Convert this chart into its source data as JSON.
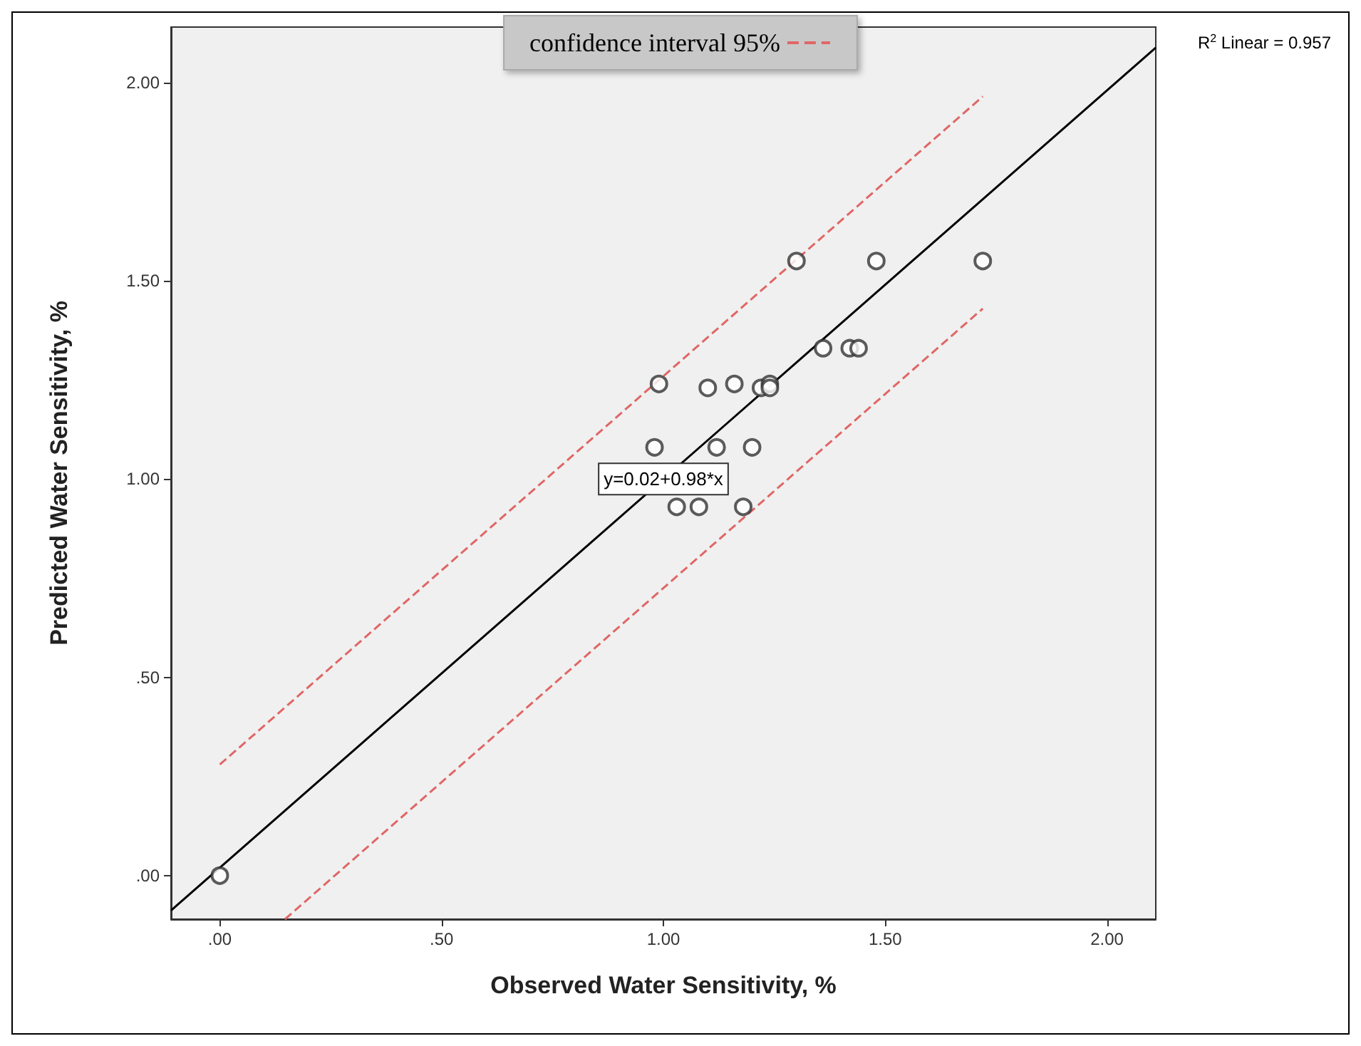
{
  "chart_data": {
    "type": "scatter",
    "xlabel": "Observed Water Sensitivity, %",
    "ylabel": "Predicted Water Sensitivity, %",
    "xlim": [
      -0.11,
      2.11
    ],
    "ylim": [
      -0.11,
      2.14
    ],
    "xticks": [
      {
        "value": 0,
        "label": ".00"
      },
      {
        "value": 0.5,
        "label": ".50"
      },
      {
        "value": 1,
        "label": "1.00"
      },
      {
        "value": 1.5,
        "label": "1.50"
      },
      {
        "value": 2,
        "label": "2.00"
      }
    ],
    "yticks": [
      {
        "value": 0,
        "label": ".00"
      },
      {
        "value": 0.5,
        "label": ".50"
      },
      {
        "value": 1,
        "label": "1.00"
      },
      {
        "value": 1.5,
        "label": "1.50"
      },
      {
        "value": 2,
        "label": "2.00"
      }
    ],
    "grid": false,
    "legend": "top",
    "marker": "circle",
    "series": [
      {
        "type": "scatter",
        "color": "#333333",
        "x": [
          0,
          0.99,
          1.3,
          1.48,
          1.72,
          1.36,
          1.42,
          1.44,
          1.1,
          1.16,
          1.22,
          1.24,
          1.24,
          0.98,
          1.12,
          1.2,
          1.03,
          1.08,
          1.18
        ],
        "values": [
          0,
          1.24,
          1.55,
          1.55,
          1.55,
          1.33,
          1.33,
          1.33,
          1.23,
          1.24,
          1.23,
          1.24,
          1.23,
          1.08,
          1.08,
          1.08,
          0.93,
          0.93,
          0.93
        ]
      },
      {
        "type": "line",
        "color": "#000000",
        "line_style": "solid",
        "marker": "none",
        "x": [
          -0.11,
          2.11
        ],
        "values": [
          -0.088,
          2.088
        ]
      },
      {
        "type": "line",
        "name": "confidence interval 95%",
        "color": "#e06666",
        "line_style": "dashed",
        "marker": "none",
        "x": [
          0,
          1.72
        ],
        "values": [
          0.28,
          1.965
        ]
      },
      {
        "type": "line",
        "color": "#e06666",
        "line_style": "dashed",
        "marker": "none",
        "x": [
          0.147,
          1.72
        ],
        "values": [
          -0.11,
          1.43
        ]
      }
    ],
    "annotations": [
      "R$^{2}$ Linear = 0.957",
      {
        "text": "y=0.02+0.98*x",
        "x": 1.0,
        "y": 1.0
      }
    ]
  }
}
